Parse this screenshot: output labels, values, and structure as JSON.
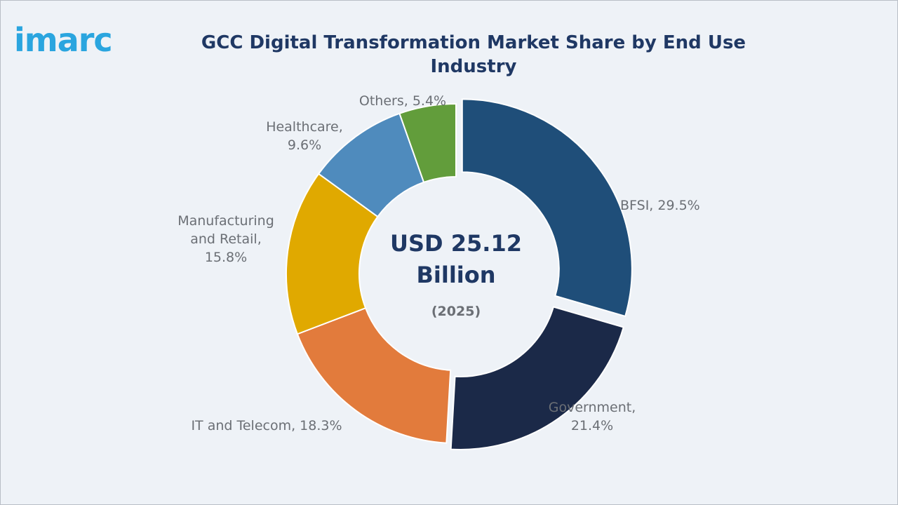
{
  "brand": {
    "logo_text": "imarc",
    "logo_color": "#2aa5df"
  },
  "chart_data": {
    "type": "pie",
    "style": "donut",
    "title": "GCC Digital Transformation Market Share by End Use Industry",
    "center_value": "USD 25.12",
    "center_unit": "Billion",
    "center_year": "(2025)",
    "unit": "%",
    "slices": [
      {
        "label": "BFSI",
        "value": 29.5,
        "color": "#1f4e79",
        "exploded": true,
        "label_lines": [
          "BFSI, 29.5%"
        ]
      },
      {
        "label": "Government",
        "value": 21.4,
        "color": "#1b2948",
        "exploded": true,
        "label_lines": [
          "Government,",
          "21.4%"
        ]
      },
      {
        "label": "IT and Telecom",
        "value": 18.3,
        "color": "#e27b3c",
        "exploded": false,
        "label_lines": [
          "IT and Telecom, 18.3%"
        ]
      },
      {
        "label": "Manufacturing and Retail",
        "value": 15.8,
        "color": "#e0a900",
        "exploded": false,
        "label_lines": [
          "Manufacturing",
          "and Retail,",
          "15.8%"
        ]
      },
      {
        "label": "Healthcare",
        "value": 9.6,
        "color": "#4f8bbd",
        "exploded": false,
        "label_lines": [
          "Healthcare,",
          "9.6%"
        ]
      },
      {
        "label": "Others",
        "value": 5.4,
        "color": "#629d3b",
        "exploded": false,
        "label_lines": [
          "Others, 5.4%"
        ]
      }
    ]
  }
}
